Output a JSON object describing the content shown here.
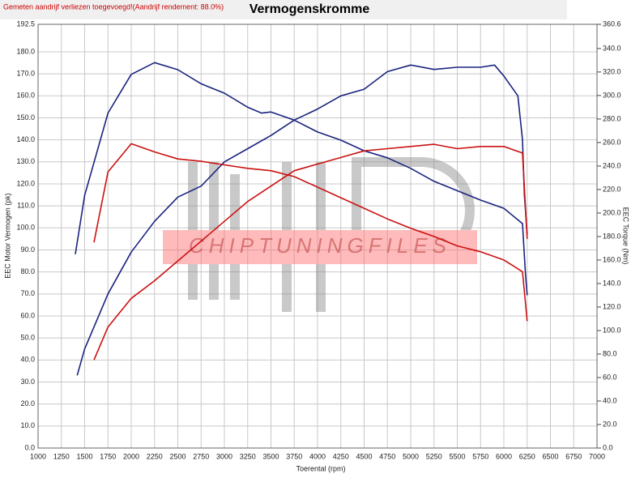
{
  "chart_data": {
    "type": "line",
    "notice": "Gemeten aandrijf verliezen toegevoegd!(Aandrijf rendement: 88.0%)",
    "title": "Vermogenskromme",
    "watermark": "CHIPTUNINGFILES",
    "xlabel": "Toerental (rpm)",
    "ylabel": "EEC Motor Vermogen (pk)",
    "y2label": "EEC Torque (Nm)",
    "xlim": [
      1000,
      7000
    ],
    "xticks": [
      1000,
      1250,
      1500,
      1750,
      2000,
      2250,
      2500,
      2750,
      3000,
      3250,
      3500,
      3750,
      4000,
      4250,
      4500,
      4750,
      5000,
      5250,
      5500,
      5750,
      6000,
      6250,
      6500,
      6750,
      7000
    ],
    "ylim": [
      0,
      192.5
    ],
    "yticks": [
      {
        "value": 0,
        "label": "0.0"
      },
      {
        "value": 10,
        "label": "10.0"
      },
      {
        "value": 20,
        "label": "20.0"
      },
      {
        "value": 30,
        "label": "30.0"
      },
      {
        "value": 40,
        "label": "40.0"
      },
      {
        "value": 50,
        "label": "50.0"
      },
      {
        "value": 60,
        "label": "60.0"
      },
      {
        "value": 70,
        "label": "70.0"
      },
      {
        "value": 80,
        "label": "80.0"
      },
      {
        "value": 90,
        "label": "90.0"
      },
      {
        "value": 100,
        "label": "100.0"
      },
      {
        "value": 110,
        "label": "110.0"
      },
      {
        "value": 120,
        "label": "120.0"
      },
      {
        "value": 130,
        "label": "130.0"
      },
      {
        "value": 140,
        "label": "140.0"
      },
      {
        "value": 150,
        "label": "150.0"
      },
      {
        "value": 160,
        "label": "160.0"
      },
      {
        "value": 170,
        "label": "170.0"
      },
      {
        "value": 180,
        "label": "180.0"
      },
      192.5
    ],
    "y2lim": [
      0,
      360.6
    ],
    "y2ticks": [
      {
        "value": 0,
        "label": "0.0"
      },
      {
        "value": 20,
        "label": "20.0"
      },
      {
        "value": 40,
        "label": "40.0"
      },
      {
        "value": 60,
        "label": "60.0"
      },
      {
        "value": 80,
        "label": "80.0"
      },
      {
        "value": 100,
        "label": "100.0"
      },
      {
        "value": 120,
        "label": "120.0"
      },
      {
        "value": 140,
        "label": "140.0"
      },
      {
        "value": 160,
        "label": "160.0"
      },
      {
        "value": 180,
        "label": "180.0"
      },
      {
        "value": 200,
        "label": "200.0"
      },
      {
        "value": 220,
        "label": "220.0"
      },
      {
        "value": 240,
        "label": "240.0"
      },
      {
        "value": 260,
        "label": "260.0"
      },
      {
        "value": 280,
        "label": "280.0"
      },
      {
        "value": 300,
        "label": "300.0"
      },
      {
        "value": 320,
        "label": "320.0"
      },
      {
        "value": 340,
        "label": "340.0"
      },
      360.6
    ],
    "grid": true,
    "series": [
      {
        "color": "#1a237e",
        "axis": "y2",
        "x": [
          1400,
          1500,
          1750,
          2000,
          2250,
          2500,
          2750,
          3000,
          3250,
          3400,
          3500,
          3750,
          4000,
          4250,
          4500,
          4750,
          5000,
          5250,
          5500,
          5750,
          6000,
          6200,
          6230,
          6250
        ],
        "values": [
          165,
          215,
          285,
          318,
          328,
          322,
          310,
          302,
          290,
          285,
          286,
          279,
          269,
          262,
          253,
          247,
          238,
          227,
          219,
          211,
          204,
          191,
          150,
          130
        ]
      },
      {
        "color": "#1a237e",
        "x": [
          1420,
          1500,
          1750,
          2000,
          2250,
          2500,
          2750,
          3000,
          3250,
          3500,
          3750,
          4000,
          4250,
          4500,
          4750,
          5000,
          5250,
          5500,
          5750,
          5900,
          6000,
          6150,
          6200,
          6220,
          6250
        ],
        "values": [
          33,
          45,
          70,
          89,
          103,
          114,
          119,
          130,
          136,
          142,
          149,
          154,
          160,
          163,
          171,
          174,
          172,
          173,
          173,
          174,
          169,
          160,
          140,
          115,
          97
        ]
      },
      {
        "color": "#cc1111",
        "axis": "y2",
        "x": [
          1600,
          1750,
          2000,
          2250,
          2500,
          2750,
          3000,
          3250,
          3500,
          3750,
          4000,
          4250,
          4500,
          4750,
          5000,
          5250,
          5500,
          5750,
          6000,
          6200,
          6250
        ],
        "values": [
          175,
          235,
          259,
          252,
          246,
          244,
          241,
          238,
          236,
          231,
          222,
          213,
          204,
          195,
          187,
          180,
          172,
          167,
          160,
          150,
          108
        ]
      },
      {
        "color": "#cc1111",
        "x": [
          1600,
          1750,
          2000,
          2250,
          2500,
          2750,
          3000,
          3250,
          3500,
          3750,
          4000,
          4250,
          4500,
          4750,
          5000,
          5250,
          5500,
          5750,
          6000,
          6200,
          6250
        ],
        "values": [
          40,
          55,
          68,
          76,
          85,
          94,
          103,
          112,
          119,
          126,
          129,
          132,
          135,
          136,
          137,
          138,
          136,
          137,
          137,
          134,
          95
        ]
      }
    ]
  }
}
